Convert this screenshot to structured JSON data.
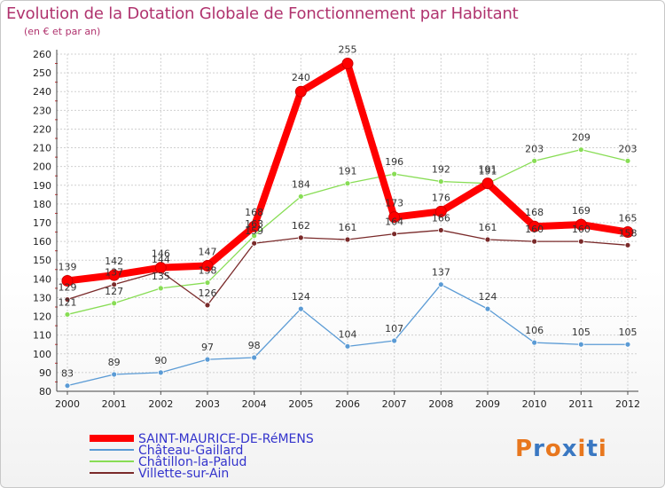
{
  "title": "Evolution de la Dotation Globale de Fonctionnement par Habitant",
  "subtitle": "(en € et par an)",
  "logo": "Proxiti",
  "chart_data": {
    "type": "line",
    "x": [
      2000,
      2001,
      2002,
      2003,
      2004,
      2005,
      2006,
      2007,
      2008,
      2009,
      2010,
      2011,
      2012
    ],
    "ylim": [
      80,
      260
    ],
    "yticks": [
      80,
      90,
      100,
      110,
      120,
      130,
      140,
      150,
      160,
      170,
      180,
      190,
      200,
      210,
      220,
      230,
      240,
      250,
      260
    ],
    "grid": true,
    "legend_position": "bottom-left",
    "series": [
      {
        "name": "SAINT-MAURICE-DE-RéMENS",
        "color": "#ff0000",
        "values": [
          139,
          142,
          146,
          147,
          168,
          240,
          255,
          173,
          176,
          191,
          168,
          169,
          165
        ]
      },
      {
        "name": "Château-Gaillard",
        "color": "#5b9bd5",
        "values": [
          83,
          89,
          90,
          97,
          98,
          124,
          104,
          107,
          137,
          124,
          106,
          105,
          105
        ]
      },
      {
        "name": "Châtillon-la-Palud",
        "color": "#88dd55",
        "values": [
          121,
          127,
          135,
          138,
          163,
          184,
          191,
          196,
          192,
          191,
          203,
          209,
          203
        ]
      },
      {
        "name": "Villette-sur-Ain",
        "color": "#7a2a2a",
        "values": [
          129,
          137,
          144,
          126,
          159,
          162,
          161,
          164,
          166,
          161,
          160,
          160,
          158
        ]
      }
    ]
  }
}
